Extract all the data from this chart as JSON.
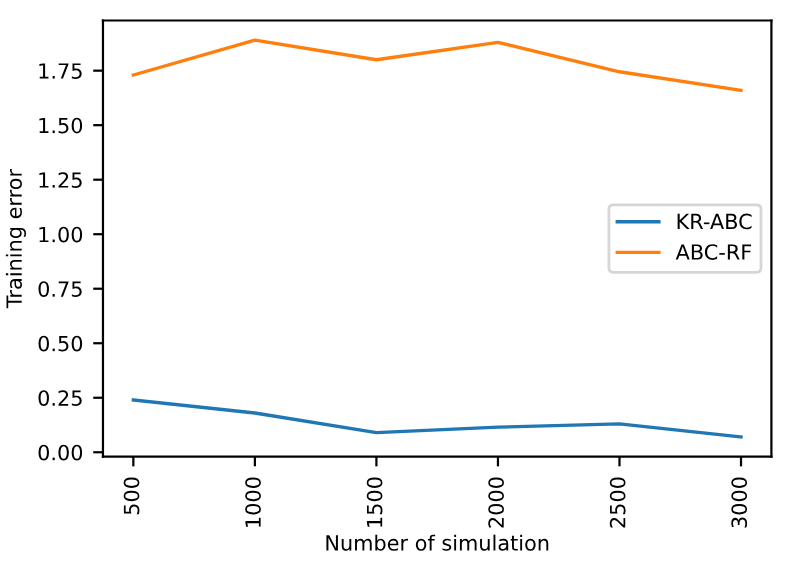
{
  "chart_data": {
    "type": "line",
    "xlabel": "Number of simulation",
    "ylabel": "Training error",
    "x": [
      500,
      1000,
      1500,
      2000,
      2500,
      3000
    ],
    "series": [
      {
        "name": "KR-ABC",
        "color": "#1f77b4",
        "values": [
          0.24,
          0.18,
          0.09,
          0.115,
          0.13,
          0.07
        ]
      },
      {
        "name": "ABC-RF",
        "color": "#ff7f0e",
        "values": [
          1.73,
          1.89,
          1.8,
          1.88,
          1.745,
          1.66
        ]
      }
    ],
    "xlim": [
      375,
      3125
    ],
    "xticks": [
      500,
      1000,
      1500,
      2000,
      2500,
      3000
    ],
    "ylim": [
      -0.02,
      1.98
    ],
    "yticks": [
      {
        "value": 0,
        "label": "0.00"
      },
      {
        "value": 0.25,
        "label": "0.25"
      },
      {
        "value": 0.5,
        "label": "0.50"
      },
      {
        "value": 0.75,
        "label": "0.75"
      },
      {
        "value": 1,
        "label": "1.00"
      },
      {
        "value": 1.25,
        "label": "1.25"
      },
      {
        "value": 1.5,
        "label": "1.50"
      },
      {
        "value": 1.75,
        "label": "1.75"
      }
    ],
    "legend": "center right",
    "grid": false
  }
}
